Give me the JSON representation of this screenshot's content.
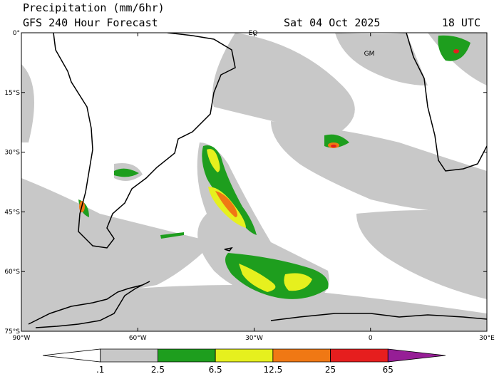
{
  "header": {
    "title": "Precipitation (mm/6hr)",
    "subtitle": "GFS 240 Hour Forecast",
    "date": "Sat 04 Oct 2025",
    "time": "18 UTC"
  },
  "map": {
    "labels": [
      "EQ",
      "GM"
    ],
    "lat_labels": [
      "0°",
      "15°S",
      "30°S",
      "45°S",
      "60°S",
      "75°S"
    ],
    "lon_labels": [
      "90°W",
      "60°W",
      "30°W",
      "0",
      "30°E"
    ]
  },
  "legend": {
    "labels": [
      ".1",
      "2.5",
      "6.5",
      "12.5",
      "25",
      "65"
    ],
    "colors": [
      "#ffffff",
      "#c8c8c8",
      "#1e9e1e",
      "#e6f01e",
      "#f07814",
      "#e61e1e",
      "#961e96"
    ]
  }
}
